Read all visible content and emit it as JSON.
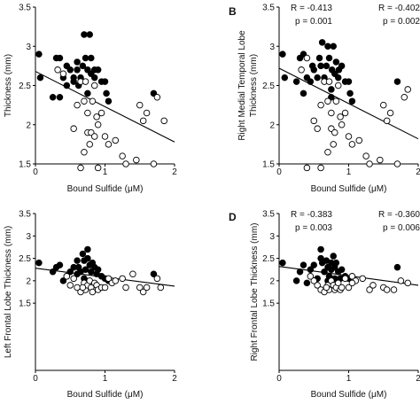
{
  "chart_data": [
    {
      "type": "scatter",
      "panel": "",
      "xlabel": "Bound Sulfide (μM)",
      "ylabel": "Thickness (mm)",
      "stats": [
        "R = -0.413",
        "p = 0.001"
      ],
      "xlim": [
        0,
        2
      ],
      "ylim": [
        1.5,
        3.5
      ],
      "xticks": [
        "0",
        "1",
        "2"
      ],
      "yticks": [
        "1.5",
        "2",
        "2.5",
        "3",
        "3.5"
      ],
      "trendline": [
        [
          0,
          2.68
        ],
        [
          2,
          1.78
        ]
      ],
      "series": [
        {
          "fill": "filled",
          "points": [
            [
              0.05,
              2.9
            ],
            [
              0.07,
              2.6
            ],
            [
              0.3,
              2.85
            ],
            [
              0.35,
              2.85
            ],
            [
              0.4,
              2.6
            ],
            [
              0.45,
              2.5
            ],
            [
              0.45,
              2.75
            ],
            [
              0.5,
              2.7
            ],
            [
              0.55,
              2.6
            ],
            [
              0.6,
              2.7
            ],
            [
              0.62,
              2.5
            ],
            [
              0.65,
              2.6
            ],
            [
              0.68,
              2.75
            ],
            [
              0.7,
              3.15
            ],
            [
              0.72,
              2.85
            ],
            [
              0.75,
              2.4
            ],
            [
              0.75,
              2.7
            ],
            [
              0.78,
              3.15
            ],
            [
              0.8,
              2.65
            ],
            [
              0.8,
              2.85
            ],
            [
              0.85,
              2.6
            ],
            [
              0.85,
              2.7
            ],
            [
              0.9,
              2.7
            ],
            [
              0.95,
              2.55
            ],
            [
              1.0,
              2.55
            ],
            [
              1.02,
              2.4
            ],
            [
              1.05,
              2.3
            ],
            [
              0.25,
              2.35
            ],
            [
              0.35,
              2.35
            ],
            [
              1.7,
              2.4
            ],
            [
              0.55,
              2.55
            ],
            [
              0.6,
              2.8
            ]
          ]
        },
        {
          "fill": "open",
          "points": [
            [
              0.65,
              2.55
            ],
            [
              0.7,
              2.3
            ],
            [
              0.72,
              2.55
            ],
            [
              0.75,
              2.15
            ],
            [
              0.75,
              1.9
            ],
            [
              0.78,
              1.75
            ],
            [
              0.8,
              1.9
            ],
            [
              0.82,
              2.3
            ],
            [
              0.85,
              2.5
            ],
            [
              0.88,
              2.1
            ],
            [
              0.9,
              2.0
            ],
            [
              0.95,
              2.15
            ],
            [
              0.65,
              1.45
            ],
            [
              0.9,
              1.45
            ],
            [
              0.6,
              2.25
            ],
            [
              0.55,
              1.95
            ],
            [
              0.7,
              1.65
            ],
            [
              1.15,
              1.8
            ],
            [
              1.25,
              1.6
            ],
            [
              1.3,
              1.5
            ],
            [
              1.45,
              1.55
            ],
            [
              1.5,
              2.25
            ],
            [
              1.55,
              2.05
            ],
            [
              1.6,
              2.15
            ],
            [
              1.7,
              1.5
            ],
            [
              1.75,
              2.35
            ],
            [
              1.85,
              2.05
            ],
            [
              1.0,
              1.85
            ],
            [
              1.05,
              1.75
            ],
            [
              0.4,
              2.65
            ],
            [
              0.32,
              2.7
            ],
            [
              0.85,
              1.85
            ]
          ]
        }
      ]
    },
    {
      "type": "scatter",
      "panel": "B",
      "xlabel": "Bound Sulfide (μM)",
      "ylabel": "Right Medial Temporal Lobe Thickness (mm)",
      "ylabel_lines": [
        "Right Medial Temporal Lobe",
        "Thickness (mm)"
      ],
      "stats": [
        "R = -0.402",
        "p = 0.002"
      ],
      "xlim": [
        0,
        2
      ],
      "ylim": [
        1.5,
        3.5
      ],
      "xticks": [
        "0",
        "1",
        "2"
      ],
      "yticks": [
        "1.5",
        "2",
        "2.5",
        "3",
        "3.5"
      ],
      "trendline": [
        [
          0,
          2.72
        ],
        [
          2,
          1.82
        ]
      ],
      "series": [
        {
          "fill": "filled",
          "points": [
            [
              0.05,
              2.9
            ],
            [
              0.08,
              2.6
            ],
            [
              0.3,
              2.85
            ],
            [
              0.35,
              2.9
            ],
            [
              0.4,
              2.6
            ],
            [
              0.45,
              2.55
            ],
            [
              0.48,
              2.75
            ],
            [
              0.5,
              2.7
            ],
            [
              0.55,
              2.6
            ],
            [
              0.6,
              2.75
            ],
            [
              0.62,
              3.05
            ],
            [
              0.65,
              2.6
            ],
            [
              0.68,
              2.75
            ],
            [
              0.7,
              3.0
            ],
            [
              0.72,
              2.85
            ],
            [
              0.75,
              2.45
            ],
            [
              0.76,
              2.7
            ],
            [
              0.78,
              3.0
            ],
            [
              0.8,
              2.65
            ],
            [
              0.82,
              2.8
            ],
            [
              0.85,
              2.6
            ],
            [
              0.86,
              2.7
            ],
            [
              0.9,
              2.75
            ],
            [
              0.95,
              2.55
            ],
            [
              1.0,
              2.55
            ],
            [
              1.02,
              2.4
            ],
            [
              1.05,
              2.3
            ],
            [
              0.25,
              2.55
            ],
            [
              0.35,
              2.4
            ],
            [
              1.7,
              2.55
            ],
            [
              0.58,
              2.85
            ],
            [
              0.75,
              2.35
            ]
          ]
        },
        {
          "fill": "open",
          "points": [
            [
              0.65,
              2.55
            ],
            [
              0.7,
              2.3
            ],
            [
              0.72,
              2.55
            ],
            [
              0.75,
              2.15
            ],
            [
              0.75,
              1.95
            ],
            [
              0.78,
              1.75
            ],
            [
              0.8,
              1.9
            ],
            [
              0.82,
              2.3
            ],
            [
              0.85,
              2.5
            ],
            [
              0.88,
              2.1
            ],
            [
              0.9,
              2.0
            ],
            [
              0.95,
              2.15
            ],
            [
              0.4,
              1.45
            ],
            [
              0.6,
              1.45
            ],
            [
              0.6,
              2.25
            ],
            [
              0.55,
              1.95
            ],
            [
              0.7,
              1.65
            ],
            [
              1.15,
              1.8
            ],
            [
              1.25,
              1.6
            ],
            [
              1.3,
              1.5
            ],
            [
              1.45,
              1.55
            ],
            [
              1.5,
              2.25
            ],
            [
              1.55,
              2.05
            ],
            [
              1.6,
              2.15
            ],
            [
              1.7,
              1.5
            ],
            [
              1.8,
              2.35
            ],
            [
              1.85,
              2.45
            ],
            [
              1.0,
              1.85
            ],
            [
              1.05,
              1.75
            ],
            [
              0.4,
              2.85
            ],
            [
              0.32,
              2.7
            ],
            [
              0.5,
              2.05
            ]
          ]
        }
      ]
    },
    {
      "type": "scatter",
      "panel": "",
      "xlabel": "Bound Sulfide (μM)",
      "ylabel": "Left Frontal Lobe Thickness (mm)",
      "stats": [
        "R = -0.383",
        "p = 0.003"
      ],
      "xlim": [
        0,
        2
      ],
      "ylim": [
        0,
        3.5
      ],
      "xticks": [
        "0",
        "1",
        "2"
      ],
      "yticks": [
        "1.5",
        "2",
        "2.5",
        "3",
        "3.5"
      ],
      "trendline": [
        [
          0,
          2.28
        ],
        [
          2,
          1.88
        ]
      ],
      "series": [
        {
          "fill": "filled",
          "points": [
            [
              0.05,
              2.4
            ],
            [
              0.3,
              2.3
            ],
            [
              0.35,
              2.35
            ],
            [
              0.25,
              2.2
            ],
            [
              0.45,
              2.1
            ],
            [
              0.5,
              2.2
            ],
            [
              0.55,
              2.3
            ],
            [
              0.6,
              2.45
            ],
            [
              0.62,
              2.3
            ],
            [
              0.65,
              2.2
            ],
            [
              0.68,
              2.6
            ],
            [
              0.7,
              2.45
            ],
            [
              0.72,
              2.25
            ],
            [
              0.75,
              2.5
            ],
            [
              0.78,
              2.35
            ],
            [
              0.8,
              2.2
            ],
            [
              0.82,
              2.4
            ],
            [
              0.85,
              2.3
            ],
            [
              0.88,
              2.15
            ],
            [
              0.9,
              2.25
            ],
            [
              0.95,
              2.1
            ],
            [
              1.0,
              2.05
            ],
            [
              1.05,
              2.0
            ],
            [
              1.7,
              2.15
            ],
            [
              0.75,
              2.7
            ],
            [
              0.6,
              2.15
            ],
            [
              0.4,
              2.0
            ],
            [
              0.7,
              2.05
            ]
          ]
        },
        {
          "fill": "open",
          "points": [
            [
              0.55,
              2.05
            ],
            [
              0.6,
              1.85
            ],
            [
              0.65,
              1.75
            ],
            [
              0.7,
              1.95
            ],
            [
              0.72,
              1.8
            ],
            [
              0.75,
              1.9
            ],
            [
              0.78,
              2.0
            ],
            [
              0.8,
              1.85
            ],
            [
              0.82,
              1.75
            ],
            [
              0.85,
              1.95
            ],
            [
              0.88,
              1.9
            ],
            [
              0.9,
              1.8
            ],
            [
              0.95,
              1.85
            ],
            [
              1.05,
              2.05
            ],
            [
              1.1,
              1.95
            ],
            [
              1.15,
              2.0
            ],
            [
              1.25,
              2.05
            ],
            [
              1.3,
              1.85
            ],
            [
              1.4,
              2.15
            ],
            [
              1.5,
              1.85
            ],
            [
              1.55,
              1.75
            ],
            [
              1.6,
              1.85
            ],
            [
              1.75,
              2.05
            ],
            [
              1.8,
              1.85
            ],
            [
              1.0,
              1.85
            ],
            [
              0.5,
              1.9
            ],
            [
              0.45,
              2.1
            ],
            [
              0.68,
              1.85
            ]
          ]
        }
      ]
    },
    {
      "type": "scatter",
      "panel": "D",
      "xlabel": "Bound Sulfide (μM)",
      "ylabel": "Right Frontal Lobe Thickness (mm)",
      "stats": [
        "R = -0.360",
        "p = 0.006"
      ],
      "xlim": [
        0,
        2
      ],
      "ylim": [
        0,
        3.5
      ],
      "xticks": [
        "0",
        "1",
        "2"
      ],
      "yticks": [
        "1.5",
        "2",
        "2.5",
        "3",
        "3.5"
      ],
      "trendline": [
        [
          0,
          2.32
        ],
        [
          2,
          1.9
        ]
      ],
      "series": [
        {
          "fill": "filled",
          "points": [
            [
              0.05,
              2.4
            ],
            [
              0.3,
              2.2
            ],
            [
              0.35,
              2.35
            ],
            [
              0.25,
              2.0
            ],
            [
              0.45,
              2.25
            ],
            [
              0.5,
              2.35
            ],
            [
              0.55,
              2.05
            ],
            [
              0.6,
              2.7
            ],
            [
              0.62,
              2.4
            ],
            [
              0.65,
              2.2
            ],
            [
              0.68,
              2.45
            ],
            [
              0.7,
              2.3
            ],
            [
              0.72,
              2.1
            ],
            [
              0.75,
              2.4
            ],
            [
              0.78,
              2.55
            ],
            [
              0.8,
              2.3
            ],
            [
              0.82,
              2.4
            ],
            [
              0.85,
              2.2
            ],
            [
              0.88,
              2.05
            ],
            [
              0.9,
              2.25
            ],
            [
              0.95,
              2.1
            ],
            [
              1.0,
              2.05
            ],
            [
              0.8,
              2.05
            ],
            [
              1.7,
              2.3
            ],
            [
              0.75,
              2.25
            ],
            [
              0.6,
              2.5
            ],
            [
              0.4,
              1.95
            ],
            [
              0.7,
              2.0
            ]
          ]
        },
        {
          "fill": "open",
          "points": [
            [
              0.55,
              1.9
            ],
            [
              0.6,
              1.8
            ],
            [
              0.65,
              1.75
            ],
            [
              0.7,
              1.9
            ],
            [
              0.72,
              1.8
            ],
            [
              0.75,
              2.0
            ],
            [
              0.78,
              1.9
            ],
            [
              0.8,
              1.8
            ],
            [
              0.82,
              1.85
            ],
            [
              0.85,
              1.95
            ],
            [
              0.88,
              1.8
            ],
            [
              0.9,
              1.85
            ],
            [
              0.95,
              2.05
            ],
            [
              1.05,
              2.1
            ],
            [
              1.1,
              2.0
            ],
            [
              1.2,
              2.05
            ],
            [
              1.3,
              1.8
            ],
            [
              1.35,
              1.9
            ],
            [
              1.5,
              1.85
            ],
            [
              1.55,
              1.8
            ],
            [
              1.65,
              1.8
            ],
            [
              1.75,
              2.0
            ],
            [
              1.85,
              1.95
            ],
            [
              1.0,
              1.85
            ],
            [
              0.5,
              2.0
            ],
            [
              0.45,
              2.1
            ],
            [
              0.68,
              1.85
            ],
            [
              1.05,
              1.95
            ]
          ]
        }
      ]
    }
  ]
}
